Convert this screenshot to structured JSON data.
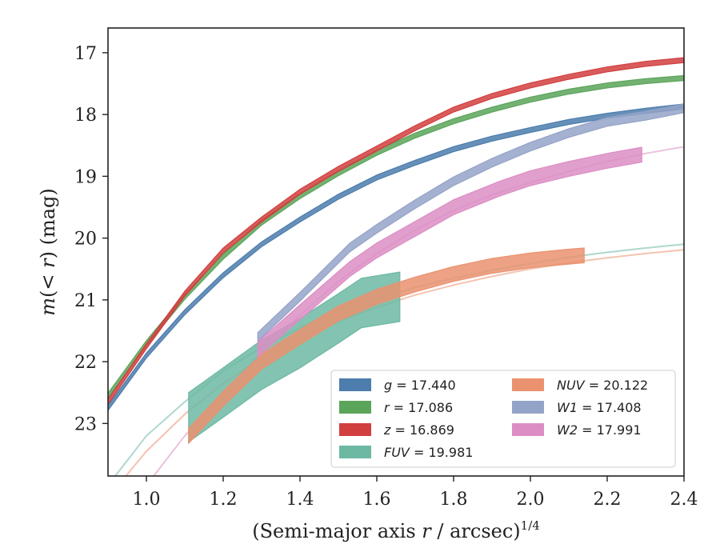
{
  "chart_data": {
    "type": "line",
    "xlabel_main": "(Semi-major axis ",
    "xlabel_var": "r",
    "xlabel_tail": " / arcsec)",
    "xlabel_exp": "1/4",
    "ylabel_m": "m",
    "ylabel_mid": "(< ",
    "ylabel_r": "r",
    "ylabel_tail": ") (mag)",
    "xlim": [
      0.9,
      2.4
    ],
    "ylim": [
      23.85,
      16.6
    ],
    "y_inverted": true,
    "xticks": [
      1.0,
      1.2,
      1.4,
      1.6,
      1.8,
      2.0,
      2.2,
      2.4
    ],
    "xtick_labels": [
      "1.0",
      "1.2",
      "1.4",
      "1.6",
      "1.8",
      "2.0",
      "2.2",
      "2.4"
    ],
    "yticks": [
      17,
      18,
      19,
      20,
      21,
      22,
      23
    ],
    "ytick_labels": [
      "17",
      "18",
      "19",
      "20",
      "21",
      "22",
      "23"
    ],
    "grid": false,
    "legend_position": "lower-right",
    "series": [
      {
        "name": "g",
        "label_var": "g",
        "label_value": " = 17.440",
        "color": "#4c7dad",
        "band_halfwidth": 0.04,
        "x": [
          0.9,
          1.0,
          1.1,
          1.2,
          1.3,
          1.4,
          1.5,
          1.6,
          1.7,
          1.8,
          1.9,
          2.0,
          2.1,
          2.2,
          2.3,
          2.4
        ],
        "y": [
          22.75,
          21.9,
          21.2,
          20.6,
          20.1,
          19.7,
          19.33,
          19.02,
          18.78,
          18.56,
          18.39,
          18.25,
          18.12,
          18.02,
          17.94,
          17.87
        ],
        "model": null
      },
      {
        "name": "r",
        "label_var": "r",
        "label_value": " = 17.086",
        "color": "#5ba55b",
        "band_halfwidth": 0.04,
        "x": [
          0.9,
          1.0,
          1.1,
          1.2,
          1.3,
          1.4,
          1.5,
          1.6,
          1.7,
          1.8,
          1.9,
          2.0,
          2.1,
          2.2,
          2.3,
          2.4
        ],
        "y": [
          22.55,
          21.7,
          20.95,
          20.3,
          19.75,
          19.32,
          18.95,
          18.62,
          18.34,
          18.11,
          17.92,
          17.76,
          17.63,
          17.53,
          17.46,
          17.41
        ],
        "model": null
      },
      {
        "name": "z",
        "label_var": "z",
        "label_value": " = 16.869",
        "color": "#d23f3f",
        "band_halfwidth": 0.04,
        "x": [
          0.9,
          1.0,
          1.1,
          1.2,
          1.3,
          1.4,
          1.5,
          1.6,
          1.7,
          1.8,
          1.9,
          2.0,
          2.1,
          2.2,
          2.3,
          2.4
        ],
        "y": [
          22.65,
          21.75,
          20.9,
          20.2,
          19.7,
          19.25,
          18.88,
          18.55,
          18.22,
          17.92,
          17.7,
          17.53,
          17.39,
          17.27,
          17.18,
          17.12
        ],
        "model": null
      },
      {
        "name": "FUV",
        "label_var": "FUV",
        "label_value": " = 19.981",
        "color": "#6db8a3",
        "band_halfwidth": 0.4,
        "x": [
          1.11,
          1.2,
          1.3,
          1.4,
          1.5,
          1.56,
          1.66
        ],
        "y": [
          22.9,
          22.5,
          22.05,
          21.7,
          21.3,
          21.05,
          20.95
        ],
        "model": {
          "x": [
            0.9,
            1.0,
            1.1,
            1.2,
            1.3,
            1.4,
            1.5,
            1.6,
            1.7,
            1.8,
            1.9,
            2.0,
            2.1,
            2.2,
            2.3,
            2.4
          ],
          "y": [
            24.0,
            23.2,
            22.65,
            22.15,
            21.77,
            21.45,
            21.19,
            20.98,
            20.8,
            20.65,
            20.52,
            20.41,
            20.31,
            20.23,
            20.16,
            20.1
          ]
        }
      },
      {
        "name": "NUV",
        "label_var": "NUV",
        "label_value": " = 20.122",
        "color": "#ea9270",
        "band_halfwidth": 0.12,
        "x": [
          1.11,
          1.2,
          1.3,
          1.4,
          1.5,
          1.6,
          1.7,
          1.8,
          1.9,
          2.0,
          2.1,
          2.14
        ],
        "y": [
          23.2,
          22.6,
          22.0,
          21.6,
          21.22,
          20.95,
          20.75,
          20.58,
          20.45,
          20.36,
          20.3,
          20.28
        ],
        "model": {
          "x": [
            0.9,
            1.0,
            1.1,
            1.2,
            1.3,
            1.4,
            1.5,
            1.6,
            1.7,
            1.8,
            1.9,
            2.0,
            2.1,
            2.2,
            2.3,
            2.4
          ],
          "y": [
            24.2,
            23.45,
            22.85,
            22.35,
            21.95,
            21.62,
            21.35,
            21.12,
            20.92,
            20.76,
            20.62,
            20.5,
            20.4,
            20.32,
            20.25,
            20.19
          ]
        }
      },
      {
        "name": "W1",
        "label_var": "W1",
        "label_value": " = 17.408",
        "color": "#94a3c8",
        "band_halfwidth": 0.07,
        "x": [
          1.29,
          1.4,
          1.53,
          1.6,
          1.7,
          1.8,
          1.9,
          2.0,
          2.1,
          2.2,
          2.3,
          2.4
        ],
        "y": [
          21.6,
          20.95,
          20.15,
          19.85,
          19.45,
          19.08,
          18.78,
          18.52,
          18.3,
          18.12,
          18.02,
          17.9
        ],
        "model": {
          "x": [
            2.3,
            2.35,
            2.4
          ],
          "y": [
            17.98,
            17.93,
            17.88
          ]
        }
      },
      {
        "name": "W2",
        "label_var": "W2",
        "label_value": " = 17.991",
        "color": "#dc8ec4",
        "band_halfwidth": 0.12,
        "x": [
          1.29,
          1.4,
          1.53,
          1.6,
          1.7,
          1.8,
          1.92,
          2.0,
          2.1,
          2.2,
          2.29
        ],
        "y": [
          21.8,
          21.2,
          20.5,
          20.2,
          19.85,
          19.5,
          19.2,
          19.03,
          18.88,
          18.75,
          18.65
        ],
        "model": {
          "x": [
            1.0,
            1.1,
            1.2,
            1.3,
            1.4,
            1.5,
            1.6,
            1.7,
            1.8,
            1.9,
            2.0,
            2.1,
            2.2,
            2.3,
            2.4
          ],
          "y": [
            24.0,
            23.2,
            22.5,
            21.85,
            21.25,
            20.7,
            20.25,
            19.87,
            19.55,
            19.3,
            19.1,
            18.92,
            18.76,
            18.63,
            18.52
          ]
        }
      }
    ]
  }
}
